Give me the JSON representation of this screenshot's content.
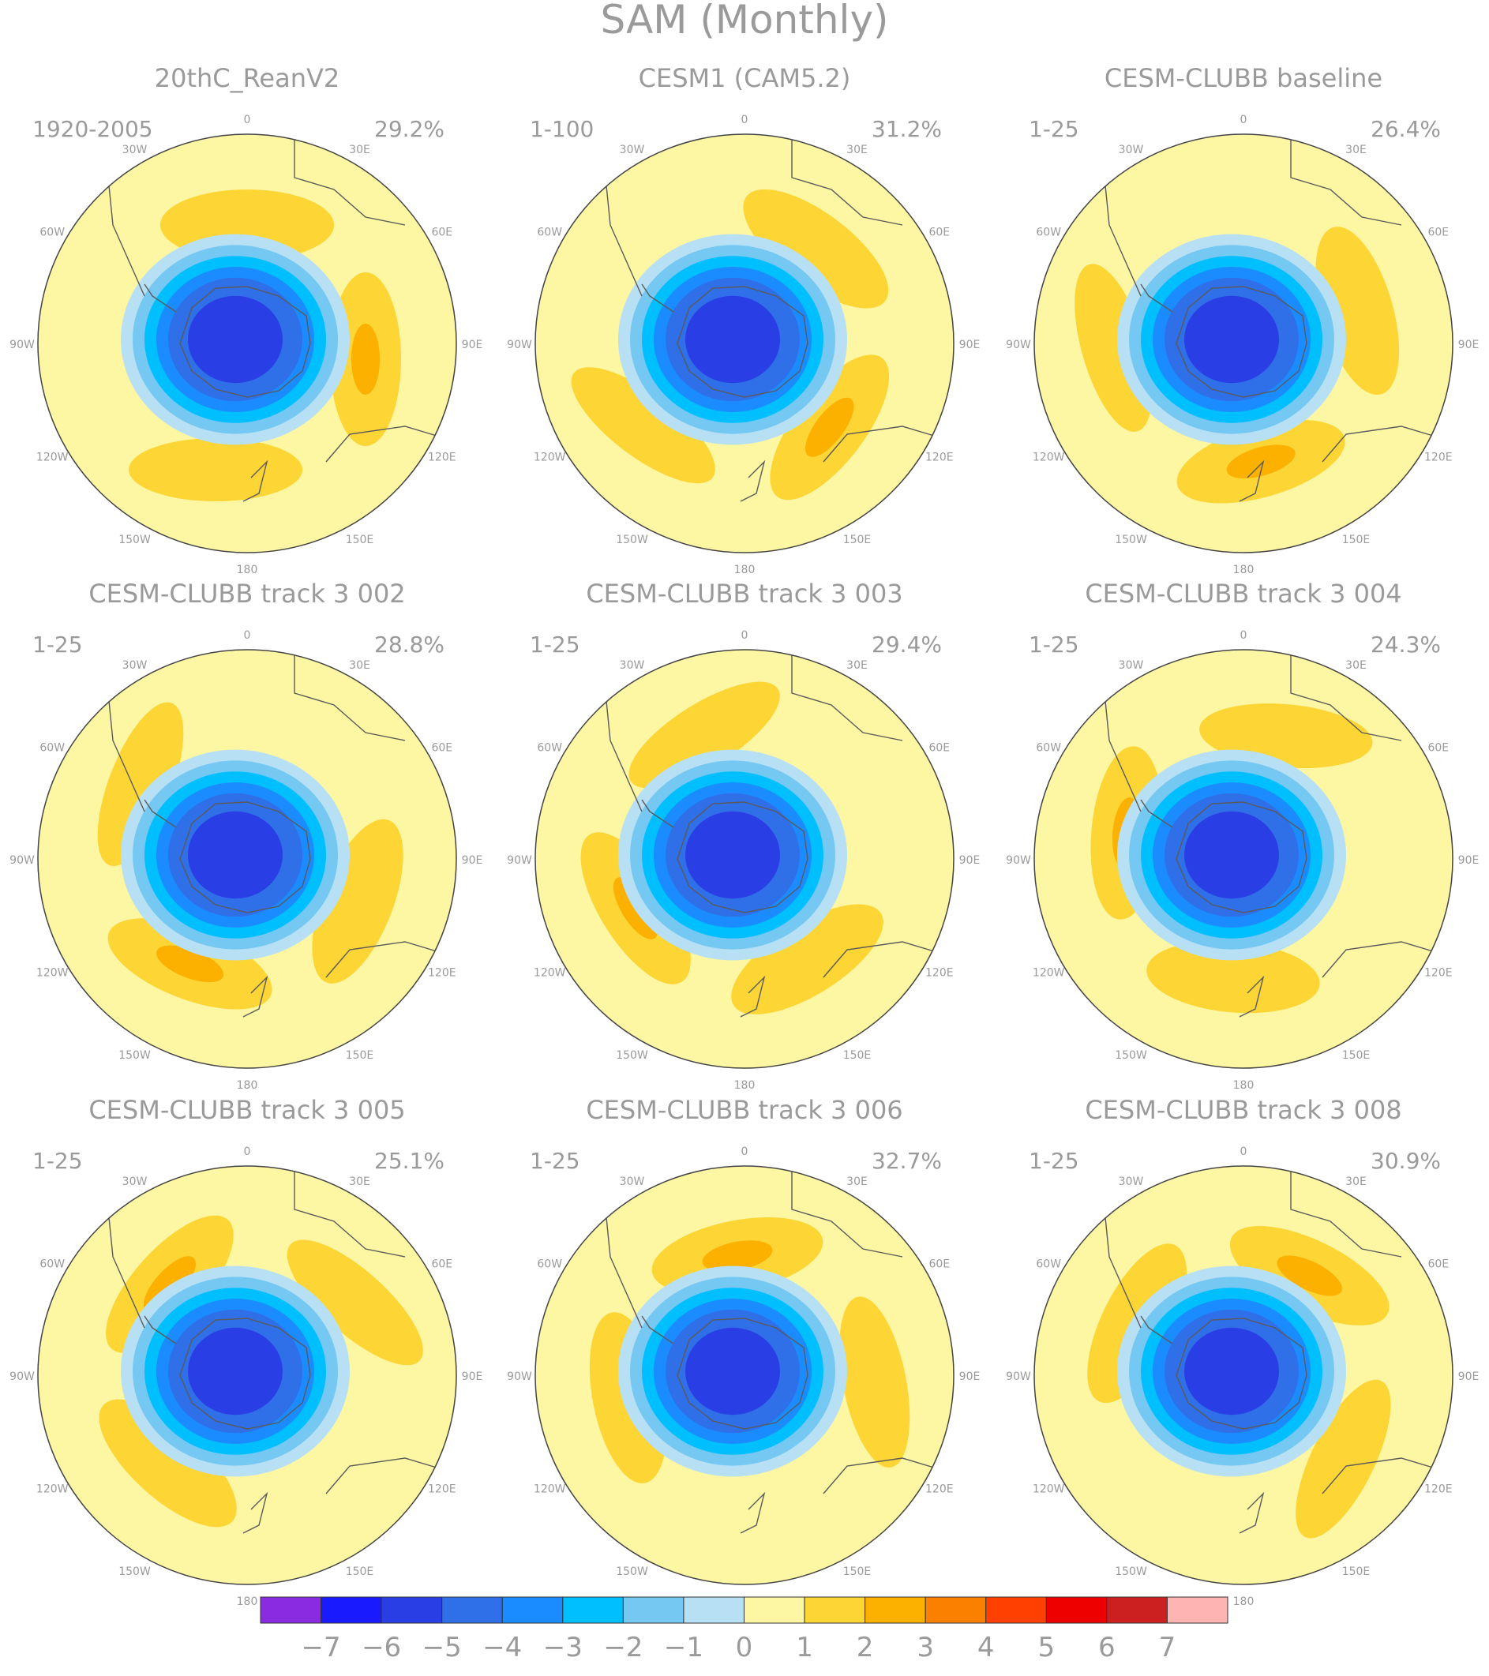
{
  "title": "SAM (Monthly)",
  "panels": [
    {
      "name": "20thC_ReanV2",
      "years": "1920-2005",
      "variance": "29.2%"
    },
    {
      "name": "CESM1 (CAM5.2)",
      "years": "1-100",
      "variance": "31.2%"
    },
    {
      "name": "CESM-CLUBB baseline",
      "years": "1-25",
      "variance": "26.4%"
    },
    {
      "name": "CESM-CLUBB track 3 002",
      "years": "1-25",
      "variance": "28.8%"
    },
    {
      "name": "CESM-CLUBB track 3 003",
      "years": "1-25",
      "variance": "29.4%"
    },
    {
      "name": "CESM-CLUBB track 3 004",
      "years": "1-25",
      "variance": "24.3%"
    },
    {
      "name": "CESM-CLUBB track 3 005",
      "years": "1-25",
      "variance": "25.1%"
    },
    {
      "name": "CESM-CLUBB track 3 006",
      "years": "1-25",
      "variance": "32.7%"
    },
    {
      "name": "CESM-CLUBB track 3 008",
      "years": "1-25",
      "variance": "30.9%"
    }
  ],
  "longitude_labels": [
    "0",
    "30E",
    "60E",
    "90E",
    "120E",
    "150E",
    "180",
    "150W",
    "120W",
    "90W",
    "60W",
    "30W"
  ],
  "colorbar": {
    "colors": [
      "#8a2be2",
      "#1a1aff",
      "#2a3ee6",
      "#2f6fe8",
      "#1a8cff",
      "#00bfff",
      "#74c8f2",
      "#b8e0f5",
      "#fdf6a3",
      "#fdd535",
      "#fcb000",
      "#fc8000",
      "#ff4000",
      "#ee0000",
      "#cc2020",
      "#ffb4b4"
    ],
    "labels": [
      "−7",
      "−6",
      "−5",
      "−4",
      "−3",
      "−2",
      "−1",
      "0",
      "1",
      "2",
      "3",
      "4",
      "5",
      "6",
      "7"
    ]
  }
}
